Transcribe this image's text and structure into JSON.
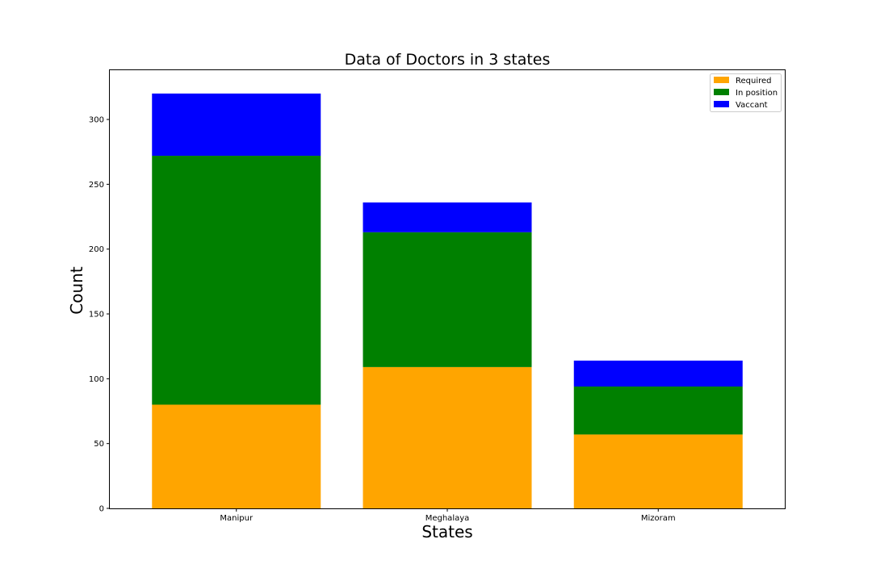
{
  "chart_data": {
    "type": "bar",
    "stacked": true,
    "title": "Data of Doctors in 3 states",
    "xlabel": "States",
    "ylabel": "Count",
    "categories": [
      "Manipur",
      "Meghalaya",
      "Mizoram"
    ],
    "ylim": [
      0,
      338
    ],
    "yticks": [
      0,
      50,
      100,
      150,
      200,
      250,
      300
    ],
    "grid": false,
    "legend_position": "top-right",
    "series": [
      {
        "name": "Required",
        "color": "#FFA500",
        "values": [
          80,
          109,
          57
        ]
      },
      {
        "name": "In position",
        "color": "#008000",
        "values": [
          192,
          104,
          37
        ]
      },
      {
        "name": "Vaccant",
        "color": "#0000FF",
        "values": [
          48,
          23,
          20
        ]
      }
    ]
  }
}
